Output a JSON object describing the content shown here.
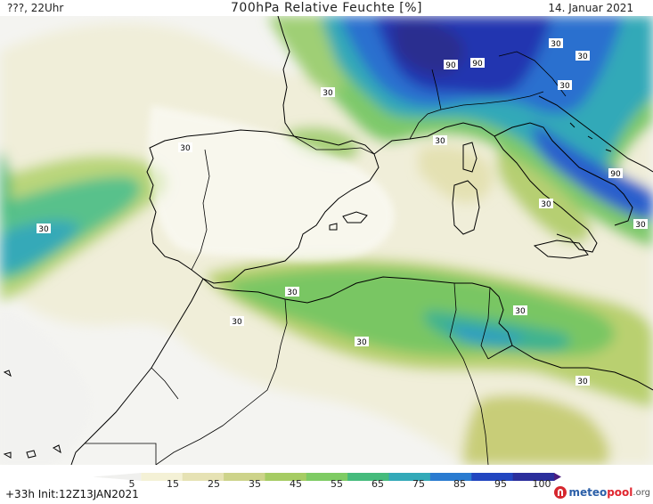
{
  "header": {
    "left": "???, 22Uhr",
    "title": "700hPa Relative Feuchte [%]",
    "date": "14. Januar 2021"
  },
  "footer": {
    "forecast": "+33h Init:12Z13JAN2021",
    "logo_meteo": "meteo",
    "logo_pool": "pool",
    "logo_org": ".org"
  },
  "legend": {
    "ticks": [
      "5",
      "15",
      "25",
      "35",
      "45",
      "55",
      "65",
      "75",
      "85",
      "95",
      "100"
    ],
    "colors": [
      "#f0f0ee",
      "#f4f1d6",
      "#e6e2b4",
      "#cdd38a",
      "#a6cc63",
      "#7ecb63",
      "#45bb7c",
      "#33a9b8",
      "#2a7bd0",
      "#2246c0",
      "#2b2f9c",
      "#4a1d80"
    ]
  },
  "contour_labels": [
    "30",
    "30",
    "30",
    "90",
    "90",
    "30",
    "30",
    "30",
    "30",
    "30",
    "30",
    "90",
    "30",
    "30",
    "30",
    "30",
    "30"
  ],
  "colors": {
    "land_dry": "#f7f7f2",
    "sea_dry": "#eeeeec",
    "coast": "#000000"
  }
}
